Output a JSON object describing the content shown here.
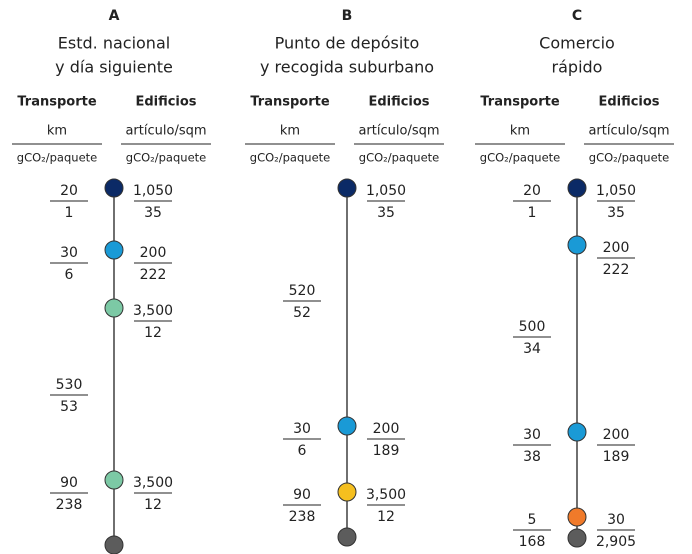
{
  "columns": [
    {
      "letter": "A",
      "title": [
        "Estd. nacional",
        "y día siguiente"
      ],
      "headers": {
        "transport": "Transporte",
        "buildings": "Edificios",
        "transport_num": "km",
        "transport_den": "gCO₂/paquete",
        "buildings_num": "artículo/sqm",
        "buildings_den": "gCO₂/paquete"
      },
      "items": [
        {
          "color": "#0b2a66",
          "left": {
            "num": "20",
            "den": "1"
          },
          "right": {
            "num": "1,050",
            "den": "35"
          }
        },
        {
          "color": "#1a9ad6",
          "left": {
            "num": "30",
            "den": "6"
          },
          "right": {
            "num": "200",
            "den": "222"
          }
        },
        {
          "color": "#7cc9a5",
          "right": {
            "num": "3,500",
            "den": "12"
          }
        },
        {
          "left": {
            "num": "530",
            "den": "53"
          }
        },
        {
          "color": "#7cc9a5",
          "left": {
            "num": "90",
            "den": "238"
          },
          "right": {
            "num": "3,500",
            "den": "12"
          }
        },
        {
          "color": "#5c5c5c"
        }
      ]
    },
    {
      "letter": "B",
      "title": [
        "Punto de depósito",
        "y recogida suburbano"
      ],
      "headers": {
        "transport": "Transporte",
        "buildings": "Edificios",
        "transport_num": "km",
        "transport_den": "gCO₂/paquete",
        "buildings_num": "artículo/sqm",
        "buildings_den": "gCO₂/paquete"
      },
      "items": [
        {
          "color": "#0b2a66",
          "right": {
            "num": "1,050",
            "den": "35"
          }
        },
        {
          "left": {
            "num": "520",
            "den": "52"
          }
        },
        {
          "color": "#1a9ad6",
          "left": {
            "num": "30",
            "den": "6"
          },
          "right": {
            "num": "200",
            "den": "189"
          }
        },
        {
          "color": "#f5bf1f",
          "left": {
            "num": "90",
            "den": "238"
          },
          "right": {
            "num": "3,500",
            "den": "12"
          }
        },
        {
          "color": "#5c5c5c"
        }
      ]
    },
    {
      "letter": "C",
      "title": [
        "Comercio",
        "rápido"
      ],
      "headers": {
        "transport": "Transporte",
        "buildings": "Edificios",
        "transport_num": "km",
        "transport_den": "gCO₂/paquete",
        "buildings_num": "artículo/sqm",
        "buildings_den": "gCO₂/paquete"
      },
      "items": [
        {
          "color": "#0b2a66",
          "left": {
            "num": "20",
            "den": "1"
          },
          "right": {
            "num": "1,050",
            "den": "35"
          }
        },
        {
          "color": "#1a9ad6",
          "right": {
            "num": "200",
            "den": "222"
          }
        },
        {
          "left": {
            "num": "500",
            "den": "34"
          }
        },
        {
          "color": "#1a9ad6",
          "left": {
            "num": "30",
            "den": "38"
          },
          "right": {
            "num": "200",
            "den": "189"
          }
        },
        {
          "color": "#f07a2a",
          "left": {
            "num": "5",
            "den": "168"
          },
          "right": {
            "num": "30",
            "den": "2,905"
          }
        },
        {
          "color": "#5c5c5c"
        }
      ]
    }
  ]
}
